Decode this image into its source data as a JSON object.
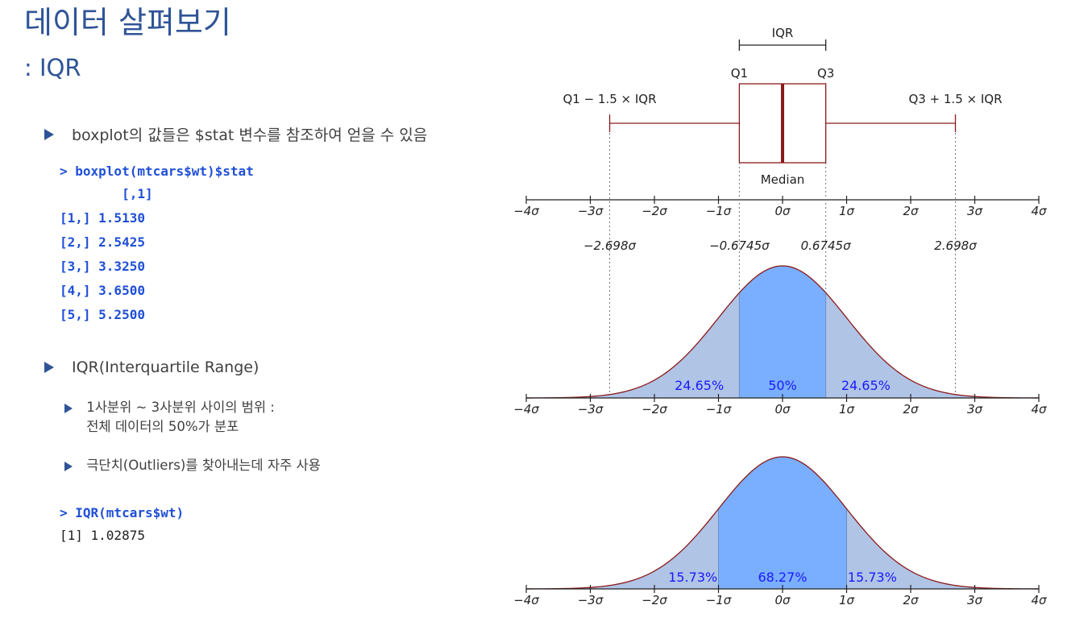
{
  "slide": {
    "title": "데이터 살펴보기",
    "subtitle": ": IQR"
  },
  "bullets": {
    "b1": "boxplot의 값들은 $stat 변수를 참조하여 얻을 수 있음",
    "code1_cmd": "> boxplot(mtcars$wt)$stat",
    "code1_out": "        [,1]\n[1,] 1.5130\n[2,] 2.5425\n[3,] 3.3250\n[4,] 3.6500\n[5,] 5.2500",
    "b2": "IQR(Interquartile Range)",
    "b2_sub1_line1": "1사분위 ~ 3사분위 사이의 범위 :",
    "b2_sub1_line2": "전체 데이터의 50%가 분포",
    "b2_sub2": "극단치(Outliers)를 찾아내는데 자주 사용",
    "code2_cmd": "> IQR(mtcars$wt)",
    "code2_out": "[1] 1.02875"
  },
  "figure": {
    "boxplot_labels": {
      "iqr": "IQR",
      "q1": "Q1",
      "q3": "Q3",
      "lower_whisker": "Q1 − 1.5 × IQR",
      "upper_whisker": "Q3 + 1.5 × IQR",
      "median": "Median"
    },
    "sigma_ticks": [
      "−4σ",
      "−3σ",
      "−2σ",
      "−1σ",
      "0σ",
      "1σ",
      "2σ",
      "3σ",
      "4σ"
    ],
    "sigma_tick_values": [
      -4,
      -3,
      -2,
      -1,
      0,
      1,
      2,
      3,
      4
    ],
    "marker_labels": [
      "−2.698σ",
      "−0.6745σ",
      "0.6745σ",
      "2.698σ"
    ],
    "marker_values": [
      -2.698,
      -0.6745,
      0.6745,
      2.698
    ],
    "curve1_percent_labels": [
      "24.65%",
      "50%",
      "24.65%"
    ],
    "curve2_percent_labels": [
      "15.73%",
      "68.27%",
      "15.73%"
    ],
    "colors": {
      "box_stroke": "#8b1a1a",
      "fill_light": "#b0c4e6",
      "fill_dark": "#7aafff",
      "curve": "#8b1a1a",
      "percent_text": "#1a1aff"
    }
  }
}
